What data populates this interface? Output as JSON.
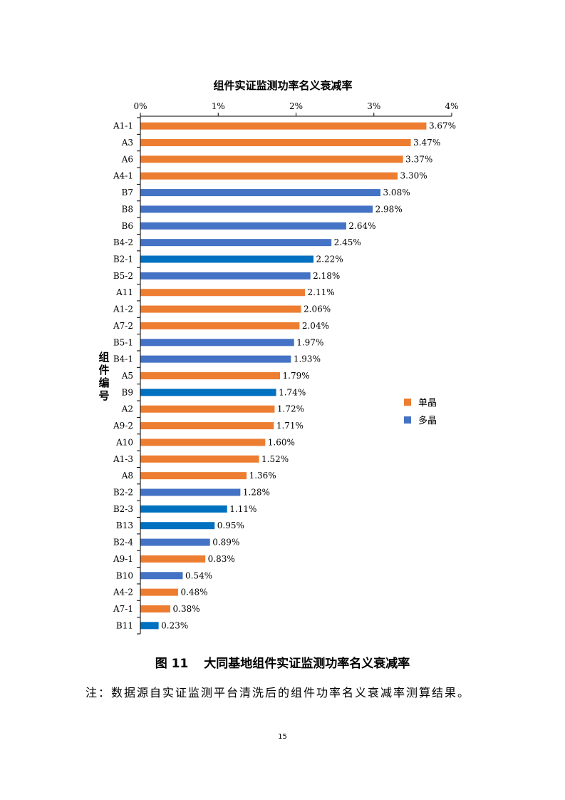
{
  "chart_data": {
    "type": "bar",
    "orientation": "horizontal",
    "title": "组件实证监测功率名义衰减率",
    "ylabel": "组件编号",
    "xlabel": "",
    "xlim": [
      0,
      4
    ],
    "xticks": [
      "0%",
      "1%",
      "2%",
      "3%",
      "4%"
    ],
    "x_axis_position": "top",
    "grid": false,
    "legend_placement": "right",
    "legend": [
      {
        "name": "单晶",
        "color": "#ED7D31"
      },
      {
        "name": "多晶",
        "color": "#4472C4"
      }
    ],
    "categories": [
      "A1-1",
      "A3",
      "A6",
      "A4-1",
      "B7",
      "B8",
      "B6",
      "B4-2",
      "B2-1",
      "B5-2",
      "A11",
      "A1-2",
      "A7-2",
      "B5-1",
      "B4-1",
      "A5",
      "B9",
      "A2",
      "A9-2",
      "A10",
      "A1-3",
      "A8",
      "B2-2",
      "B2-3",
      "B13",
      "B2-4",
      "A9-1",
      "B10",
      "A4-2",
      "A7-1",
      "B11"
    ],
    "values": [
      3.67,
      3.47,
      3.37,
      3.3,
      3.08,
      2.98,
      2.64,
      2.45,
      2.22,
      2.18,
      2.11,
      2.06,
      2.04,
      1.97,
      1.93,
      1.79,
      1.74,
      1.72,
      1.71,
      1.6,
      1.52,
      1.36,
      1.28,
      1.11,
      0.95,
      0.89,
      0.83,
      0.54,
      0.48,
      0.38,
      0.23
    ],
    "data_labels": [
      "3.67%",
      "3.47%",
      "3.37%",
      "3.30%",
      "3.08%",
      "2.98%",
      "2.64%",
      "2.45%",
      "2.22%",
      "2.18%",
      "2.11%",
      "2.06%",
      "2.04%",
      "1.97%",
      "1.93%",
      "1.79%",
      "1.74%",
      "1.72%",
      "1.71%",
      "1.60%",
      "1.52%",
      "1.36%",
      "1.28%",
      "1.11%",
      "0.95%",
      "0.89%",
      "0.83%",
      "0.54%",
      "0.48%",
      "0.38%",
      "0.23%"
    ],
    "bar_colors": [
      "#ED7D31",
      "#ED7D31",
      "#ED7D31",
      "#ED7D31",
      "#4472C4",
      "#4472C4",
      "#4472C4",
      "#4472C4",
      "#0070C0",
      "#4472C4",
      "#ED7D31",
      "#ED7D31",
      "#ED7D31",
      "#4472C4",
      "#4472C4",
      "#ED7D31",
      "#0070C0",
      "#ED7D31",
      "#ED7D31",
      "#ED7D31",
      "#ED7D31",
      "#ED7D31",
      "#4472C4",
      "#0070C0",
      "#0070C0",
      "#4472C4",
      "#ED7D31",
      "#4472C4",
      "#ED7D31",
      "#ED7D31",
      "#0070C0"
    ]
  },
  "figure": {
    "caption_number": "图 11",
    "caption_text": "大同基地组件实证监测功率名义衰减率",
    "note": "注：数据源自实证监测平台清洗后的组件功率名义衰减率测算结果。",
    "page_number": "15"
  }
}
